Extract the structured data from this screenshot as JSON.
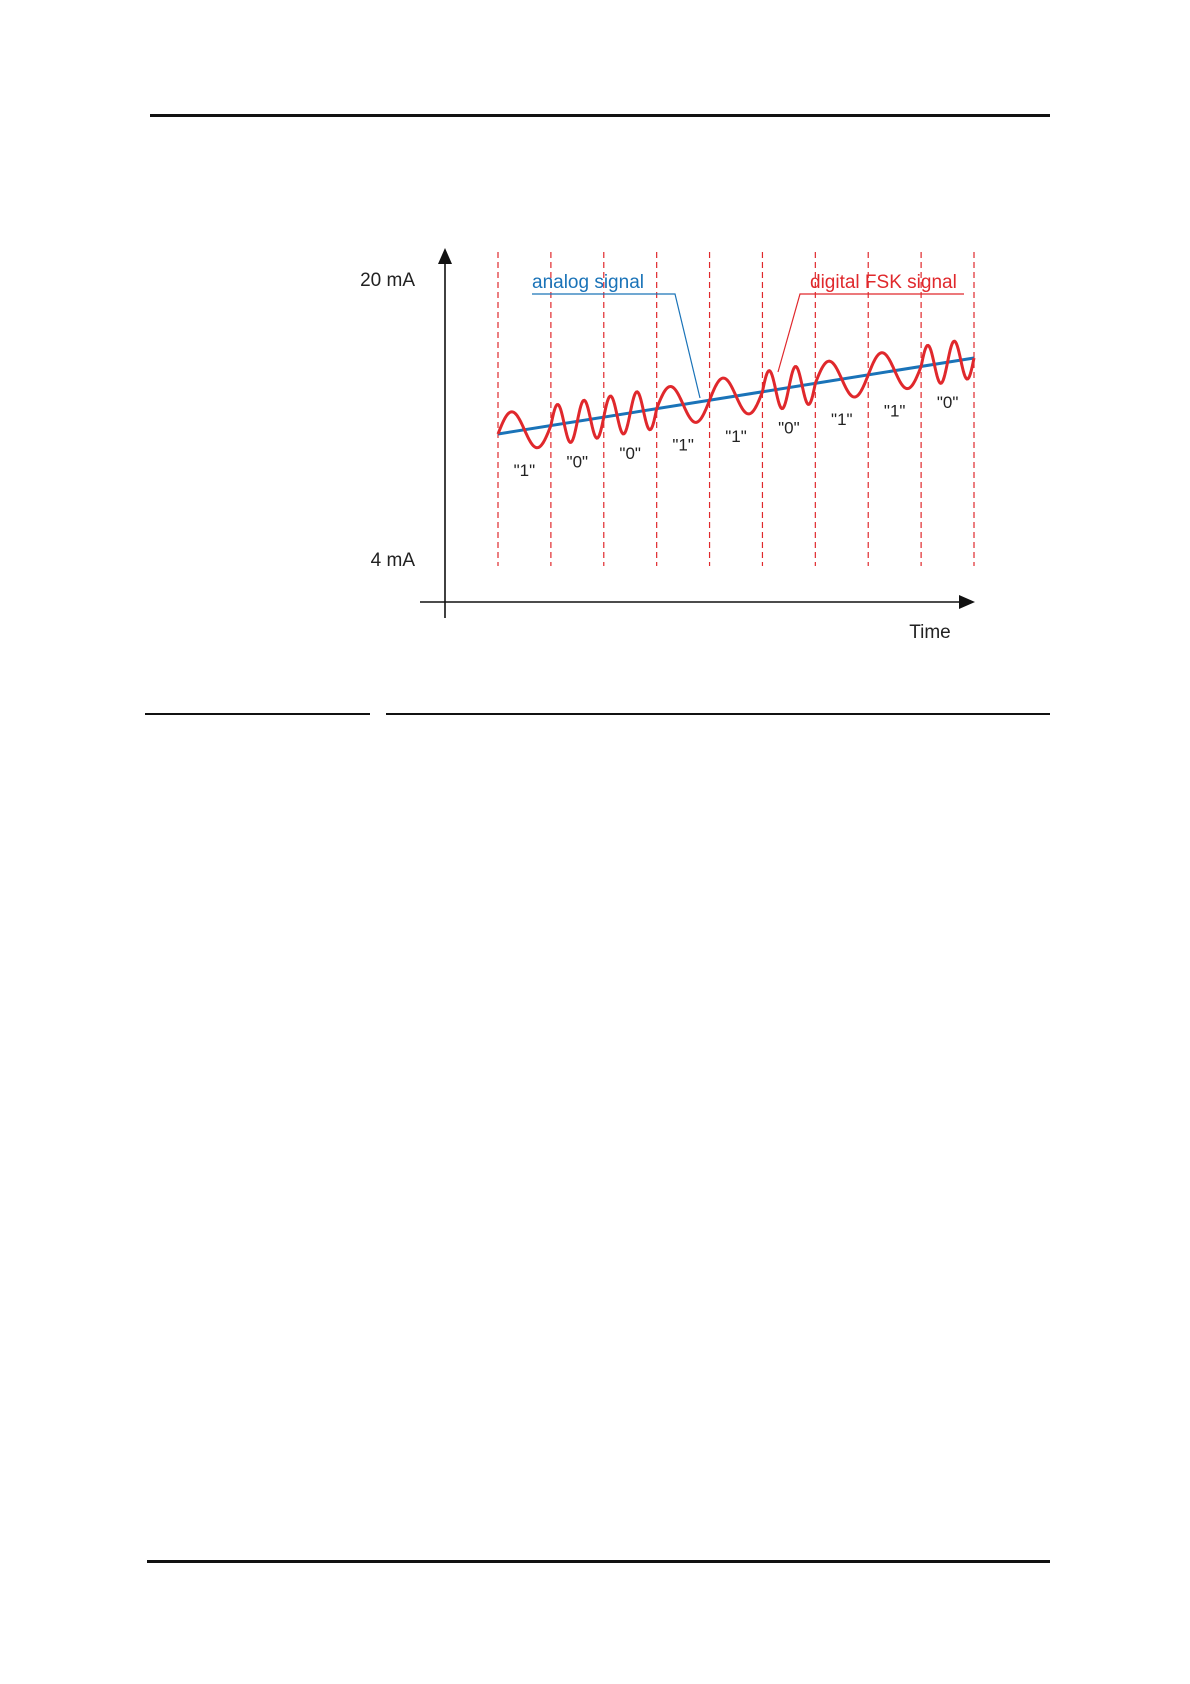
{
  "diagram": {
    "y_axis": {
      "top_label": "20 mA",
      "bottom_label": "4 mA"
    },
    "x_axis": {
      "label": "Time"
    },
    "legend": {
      "analog": {
        "text": "analog signal",
        "color": "#1a73b8"
      },
      "digital": {
        "text": "digital FSK signal",
        "color": "#e0282c"
      }
    },
    "bits": [
      "\"1\"",
      "\"0\"",
      "\"0\"",
      "\"1\"",
      "\"1\"",
      "\"0\"",
      "\"1\"",
      "\"1\"",
      "\"0\""
    ],
    "bit_cycles": {
      "1": 1,
      "0": 2
    },
    "colors": {
      "axis": "#111111",
      "grid": "#e0282c",
      "text": "#222222"
    }
  }
}
